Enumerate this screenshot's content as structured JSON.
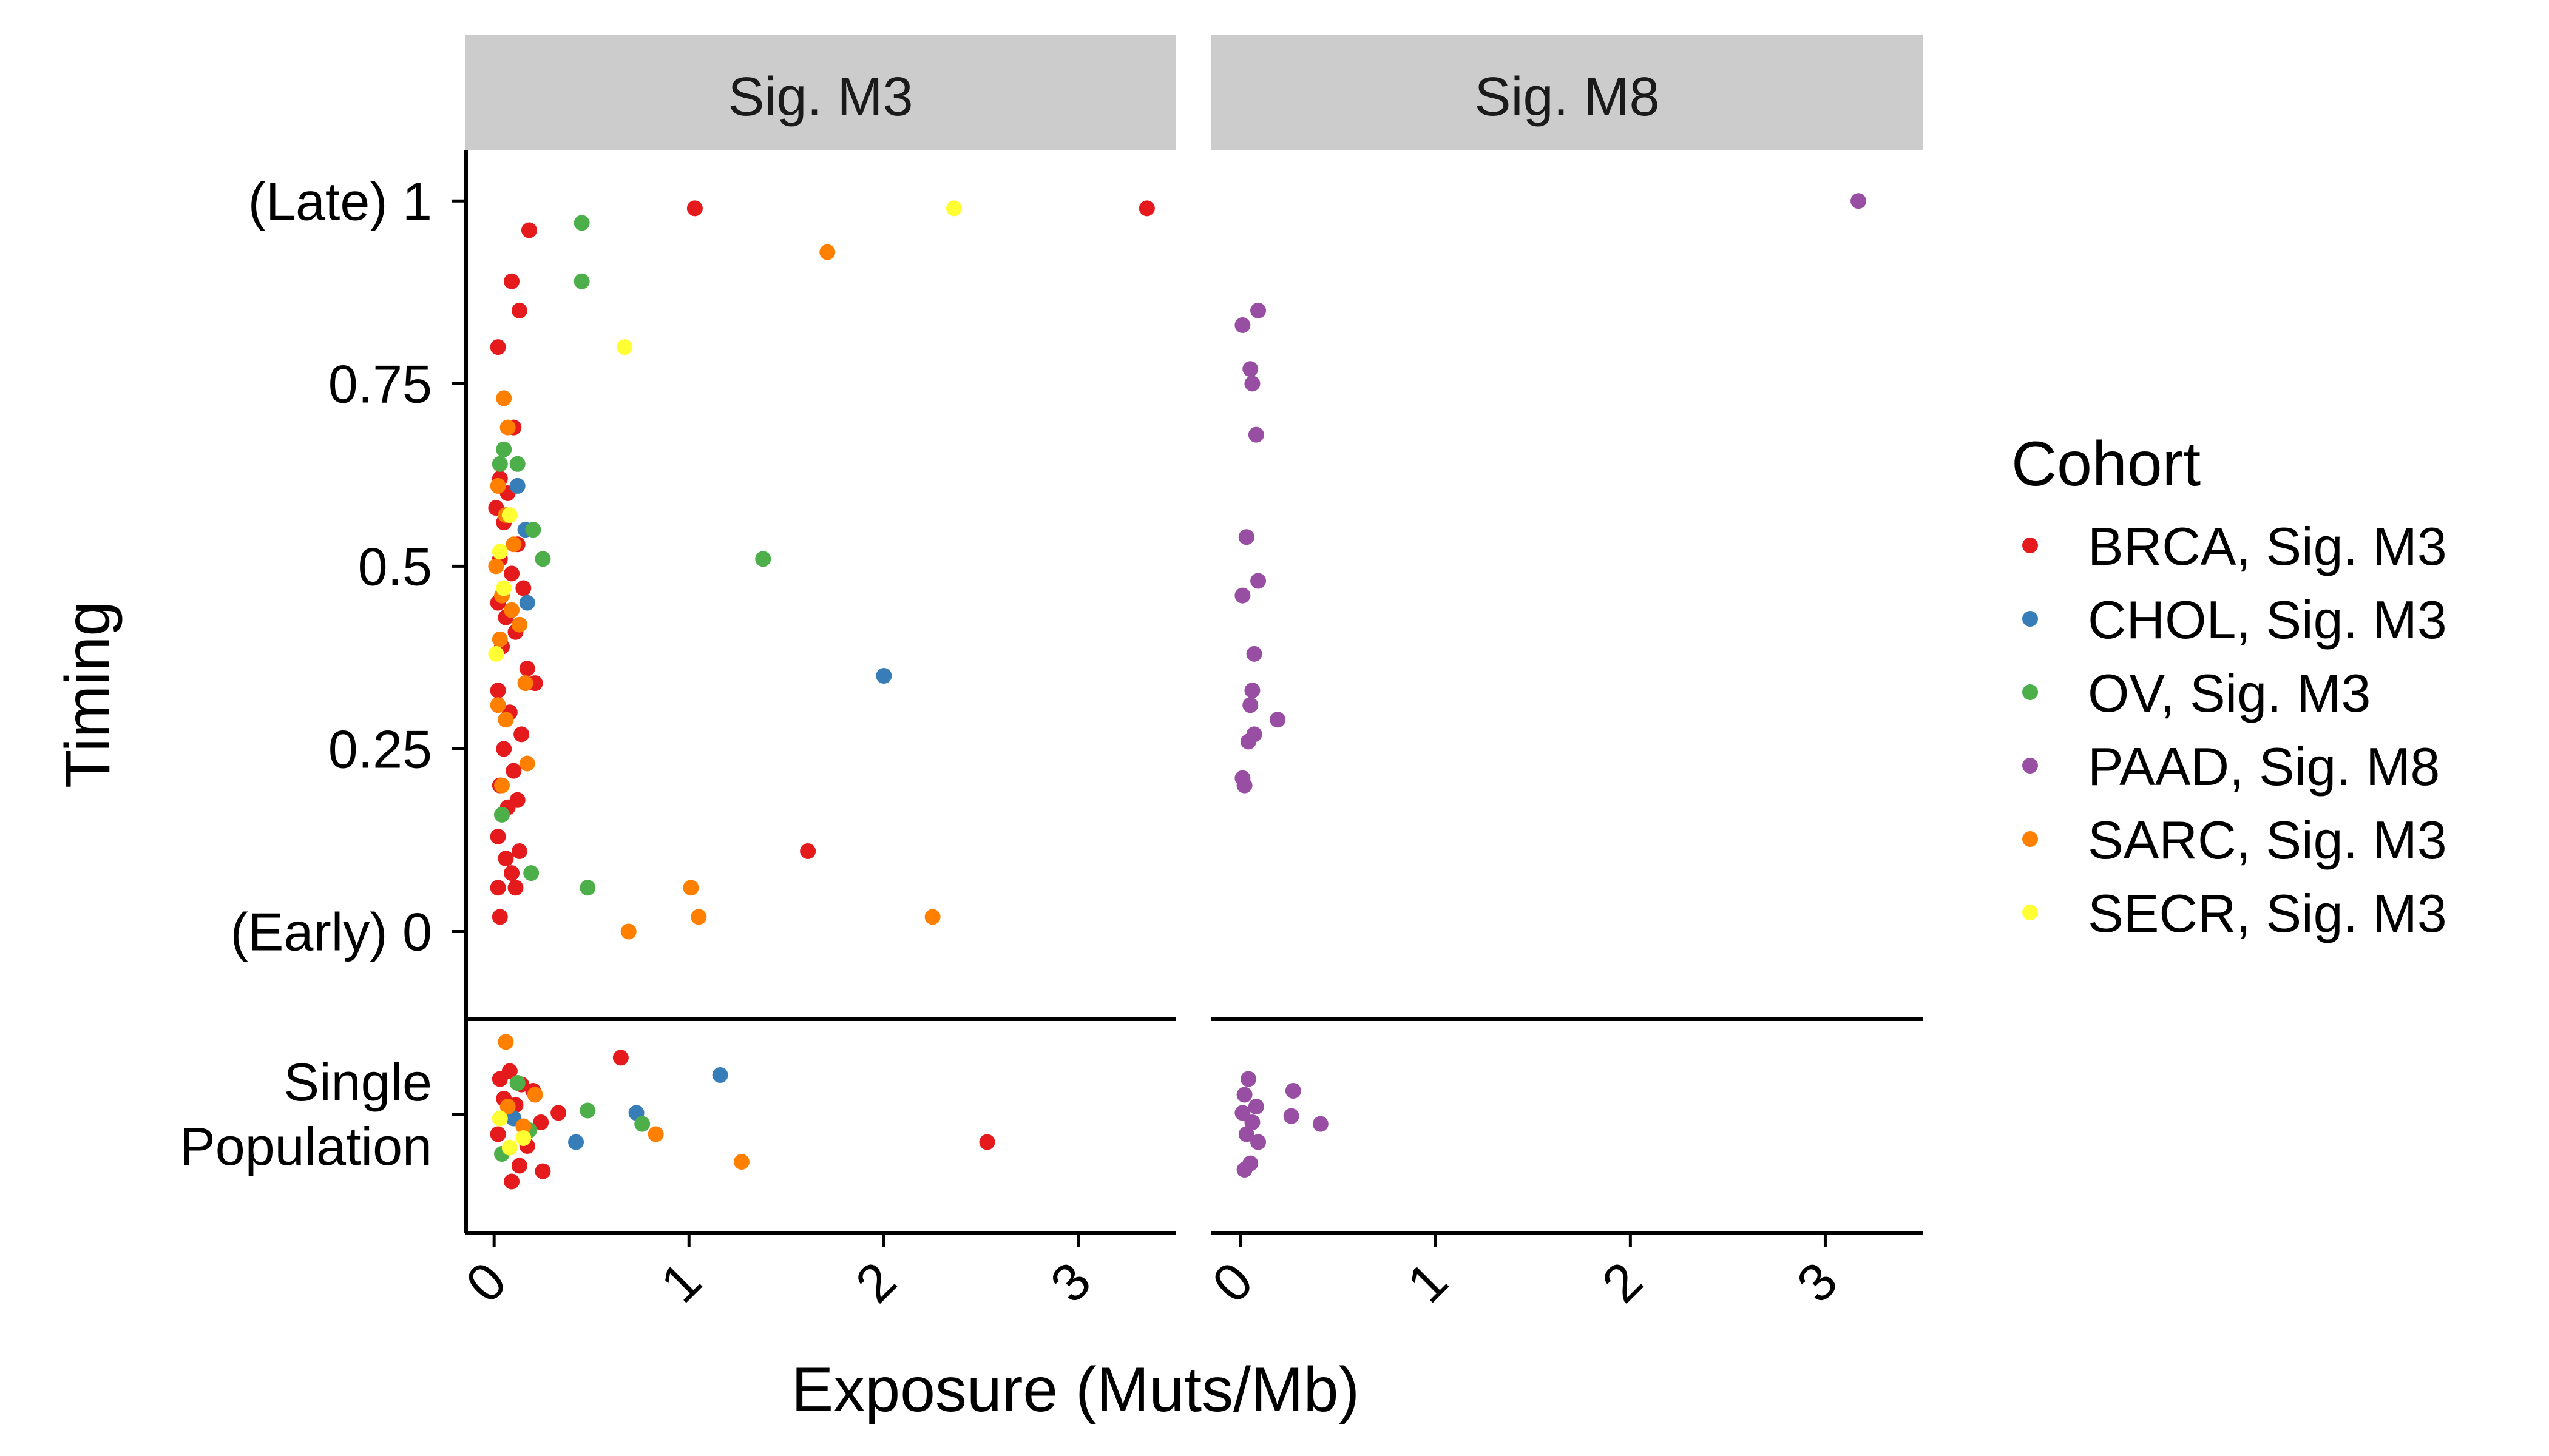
{
  "chart_data": {
    "type": "scatter",
    "xlabel": "Exposure (Muts/Mb)",
    "ylabel": "Timing",
    "xlim": [
      -0.15,
      3.5
    ],
    "ylim": [
      -0.12,
      1.07
    ],
    "x_ticks": [
      "0",
      "1",
      "2",
      "3"
    ],
    "y_ticks": [
      {
        "value": 1,
        "label": "(Late) 1"
      },
      {
        "value": 0.75,
        "label": "0.75"
      },
      {
        "value": 0.5,
        "label": "0.5"
      },
      {
        "value": 0.25,
        "label": "0.25"
      },
      {
        "value": 0,
        "label": "(Early) 0"
      }
    ],
    "bottom_row_label": [
      "Single",
      "Population"
    ],
    "grid": false,
    "legend": {
      "title": "Cohort",
      "placement": "right",
      "entries": [
        {
          "name": "BRCA, Sig. M3",
          "color": "#e41a1c"
        },
        {
          "name": "CHOL, Sig. M3",
          "color": "#377eb8"
        },
        {
          "name": "OV, Sig. M3",
          "color": "#4daf4a"
        },
        {
          "name": "PAAD, Sig. M8",
          "color": "#984ea3"
        },
        {
          "name": "SARC, Sig. M3",
          "color": "#ff7f00"
        },
        {
          "name": "SECR, Sig. M3",
          "color": "#ffff33"
        }
      ]
    },
    "panels": [
      {
        "title": "Sig. M3",
        "timing_points": [
          {
            "cohort": "BRCA, Sig. M3",
            "x": 1.03,
            "y": 0.99
          },
          {
            "cohort": "BRCA, Sig. M3",
            "x": 3.35,
            "y": 0.99
          },
          {
            "cohort": "BRCA, Sig. M3",
            "x": 0.18,
            "y": 0.96
          },
          {
            "cohort": "BRCA, Sig. M3",
            "x": 0.09,
            "y": 0.89
          },
          {
            "cohort": "BRCA, Sig. M3",
            "x": 0.13,
            "y": 0.85
          },
          {
            "cohort": "BRCA, Sig. M3",
            "x": 0.02,
            "y": 0.8
          },
          {
            "cohort": "BRCA, Sig. M3",
            "x": 0.1,
            "y": 0.69
          },
          {
            "cohort": "BRCA, Sig. M3",
            "x": 0.03,
            "y": 0.62
          },
          {
            "cohort": "BRCA, Sig. M3",
            "x": 0.07,
            "y": 0.6
          },
          {
            "cohort": "BRCA, Sig. M3",
            "x": 0.01,
            "y": 0.58
          },
          {
            "cohort": "BRCA, Sig. M3",
            "x": 0.05,
            "y": 0.56
          },
          {
            "cohort": "BRCA, Sig. M3",
            "x": 0.12,
            "y": 0.53
          },
          {
            "cohort": "BRCA, Sig. M3",
            "x": 0.03,
            "y": 0.51
          },
          {
            "cohort": "BRCA, Sig. M3",
            "x": 0.09,
            "y": 0.49
          },
          {
            "cohort": "BRCA, Sig. M3",
            "x": 0.15,
            "y": 0.47
          },
          {
            "cohort": "BRCA, Sig. M3",
            "x": 0.02,
            "y": 0.45
          },
          {
            "cohort": "BRCA, Sig. M3",
            "x": 0.06,
            "y": 0.43
          },
          {
            "cohort": "BRCA, Sig. M3",
            "x": 0.11,
            "y": 0.41
          },
          {
            "cohort": "BRCA, Sig. M3",
            "x": 0.04,
            "y": 0.39
          },
          {
            "cohort": "BRCA, Sig. M3",
            "x": 0.17,
            "y": 0.36
          },
          {
            "cohort": "BRCA, Sig. M3",
            "x": 0.21,
            "y": 0.34
          },
          {
            "cohort": "BRCA, Sig. M3",
            "x": 0.02,
            "y": 0.33
          },
          {
            "cohort": "BRCA, Sig. M3",
            "x": 0.08,
            "y": 0.3
          },
          {
            "cohort": "BRCA, Sig. M3",
            "x": 0.14,
            "y": 0.27
          },
          {
            "cohort": "BRCA, Sig. M3",
            "x": 0.05,
            "y": 0.25
          },
          {
            "cohort": "BRCA, Sig. M3",
            "x": 0.1,
            "y": 0.22
          },
          {
            "cohort": "BRCA, Sig. M3",
            "x": 0.03,
            "y": 0.2
          },
          {
            "cohort": "BRCA, Sig. M3",
            "x": 0.12,
            "y": 0.18
          },
          {
            "cohort": "BRCA, Sig. M3",
            "x": 0.07,
            "y": 0.17
          },
          {
            "cohort": "BRCA, Sig. M3",
            "x": 0.02,
            "y": 0.13
          },
          {
            "cohort": "BRCA, Sig. M3",
            "x": 0.13,
            "y": 0.11
          },
          {
            "cohort": "BRCA, Sig. M3",
            "x": 0.06,
            "y": 0.1
          },
          {
            "cohort": "BRCA, Sig. M3",
            "x": 0.09,
            "y": 0.08
          },
          {
            "cohort": "BRCA, Sig. M3",
            "x": 0.02,
            "y": 0.06
          },
          {
            "cohort": "BRCA, Sig. M3",
            "x": 0.11,
            "y": 0.06
          },
          {
            "cohort": "BRCA, Sig. M3",
            "x": 0.03,
            "y": 0.02
          },
          {
            "cohort": "BRCA, Sig. M3",
            "x": 1.61,
            "y": 0.11
          },
          {
            "cohort": "CHOL, Sig. M3",
            "x": 0.12,
            "y": 0.61
          },
          {
            "cohort": "CHOL, Sig. M3",
            "x": 0.16,
            "y": 0.55
          },
          {
            "cohort": "CHOL, Sig. M3",
            "x": 0.17,
            "y": 0.45
          },
          {
            "cohort": "CHOL, Sig. M3",
            "x": 2.0,
            "y": 0.35
          },
          {
            "cohort": "OV, Sig. M3",
            "x": 0.45,
            "y": 0.97
          },
          {
            "cohort": "OV, Sig. M3",
            "x": 0.45,
            "y": 0.89
          },
          {
            "cohort": "OV, Sig. M3",
            "x": 0.05,
            "y": 0.66
          },
          {
            "cohort": "OV, Sig. M3",
            "x": 0.12,
            "y": 0.64
          },
          {
            "cohort": "OV, Sig. M3",
            "x": 0.03,
            "y": 0.64
          },
          {
            "cohort": "OV, Sig. M3",
            "x": 0.2,
            "y": 0.55
          },
          {
            "cohort": "OV, Sig. M3",
            "x": 0.25,
            "y": 0.51
          },
          {
            "cohort": "OV, Sig. M3",
            "x": 1.38,
            "y": 0.51
          },
          {
            "cohort": "OV, Sig. M3",
            "x": 0.04,
            "y": 0.16
          },
          {
            "cohort": "OV, Sig. M3",
            "x": 0.19,
            "y": 0.08
          },
          {
            "cohort": "OV, Sig. M3",
            "x": 0.48,
            "y": 0.06
          },
          {
            "cohort": "SARC, Sig. M3",
            "x": 1.71,
            "y": 0.93
          },
          {
            "cohort": "SARC, Sig. M3",
            "x": 0.05,
            "y": 0.73
          },
          {
            "cohort": "SARC, Sig. M3",
            "x": 0.07,
            "y": 0.69
          },
          {
            "cohort": "SARC, Sig. M3",
            "x": 0.02,
            "y": 0.61
          },
          {
            "cohort": "SARC, Sig. M3",
            "x": 0.06,
            "y": 0.57
          },
          {
            "cohort": "SARC, Sig. M3",
            "x": 0.1,
            "y": 0.53
          },
          {
            "cohort": "SARC, Sig. M3",
            "x": 0.01,
            "y": 0.5
          },
          {
            "cohort": "SARC, Sig. M3",
            "x": 0.04,
            "y": 0.46
          },
          {
            "cohort": "SARC, Sig. M3",
            "x": 0.09,
            "y": 0.44
          },
          {
            "cohort": "SARC, Sig. M3",
            "x": 0.13,
            "y": 0.42
          },
          {
            "cohort": "SARC, Sig. M3",
            "x": 0.03,
            "y": 0.4
          },
          {
            "cohort": "SARC, Sig. M3",
            "x": 0.16,
            "y": 0.34
          },
          {
            "cohort": "SARC, Sig. M3",
            "x": 0.02,
            "y": 0.31
          },
          {
            "cohort": "SARC, Sig. M3",
            "x": 0.06,
            "y": 0.29
          },
          {
            "cohort": "SARC, Sig. M3",
            "x": 0.17,
            "y": 0.23
          },
          {
            "cohort": "SARC, Sig. M3",
            "x": 0.04,
            "y": 0.2
          },
          {
            "cohort": "SARC, Sig. M3",
            "x": 1.01,
            "y": 0.06
          },
          {
            "cohort": "SARC, Sig. M3",
            "x": 1.05,
            "y": 0.02
          },
          {
            "cohort": "SARC, Sig. M3",
            "x": 2.25,
            "y": 0.02
          },
          {
            "cohort": "SARC, Sig. M3",
            "x": 0.69,
            "y": 0.0
          },
          {
            "cohort": "SECR, Sig. M3",
            "x": 2.36,
            "y": 0.99
          },
          {
            "cohort": "SECR, Sig. M3",
            "x": 0.67,
            "y": 0.8
          },
          {
            "cohort": "SECR, Sig. M3",
            "x": 0.08,
            "y": 0.57
          },
          {
            "cohort": "SECR, Sig. M3",
            "x": 0.03,
            "y": 0.52
          },
          {
            "cohort": "SECR, Sig. M3",
            "x": 0.05,
            "y": 0.47
          },
          {
            "cohort": "SECR, Sig. M3",
            "x": 0.01,
            "y": 0.38
          }
        ],
        "single_population_points": [
          {
            "cohort": "BRCA, Sig. M3",
            "x": 0.65,
            "jitter": 0.72
          },
          {
            "cohort": "BRCA, Sig. M3",
            "x": 2.53,
            "jitter": -0.35
          },
          {
            "cohort": "BRCA, Sig. M3",
            "x": 0.33,
            "jitter": 0.02
          },
          {
            "cohort": "BRCA, Sig. M3",
            "x": 0.03,
            "jitter": 0.45
          },
          {
            "cohort": "BRCA, Sig. M3",
            "x": 0.08,
            "jitter": 0.55
          },
          {
            "cohort": "BRCA, Sig. M3",
            "x": 0.14,
            "jitter": 0.38
          },
          {
            "cohort": "BRCA, Sig. M3",
            "x": 0.2,
            "jitter": 0.3
          },
          {
            "cohort": "BRCA, Sig. M3",
            "x": 0.05,
            "jitter": 0.2
          },
          {
            "cohort": "BRCA, Sig. M3",
            "x": 0.11,
            "jitter": 0.12
          },
          {
            "cohort": "BRCA, Sig. M3",
            "x": 0.24,
            "jitter": -0.1
          },
          {
            "cohort": "BRCA, Sig. M3",
            "x": 0.02,
            "jitter": -0.25
          },
          {
            "cohort": "BRCA, Sig. M3",
            "x": 0.17,
            "jitter": -0.4
          },
          {
            "cohort": "BRCA, Sig. M3",
            "x": 0.25,
            "jitter": -0.72
          },
          {
            "cohort": "BRCA, Sig. M3",
            "x": 0.09,
            "jitter": -0.85
          },
          {
            "cohort": "BRCA, Sig. M3",
            "x": 0.13,
            "jitter": -0.65
          },
          {
            "cohort": "CHOL, Sig. M3",
            "x": 1.16,
            "jitter": 0.5
          },
          {
            "cohort": "CHOL, Sig. M3",
            "x": 0.73,
            "jitter": 0.02
          },
          {
            "cohort": "CHOL, Sig. M3",
            "x": 0.42,
            "jitter": -0.35
          },
          {
            "cohort": "CHOL, Sig. M3",
            "x": 0.1,
            "jitter": -0.05
          },
          {
            "cohort": "OV, Sig. M3",
            "x": 0.76,
            "jitter": -0.12
          },
          {
            "cohort": "OV, Sig. M3",
            "x": 0.48,
            "jitter": 0.05
          },
          {
            "cohort": "OV, Sig. M3",
            "x": 0.12,
            "jitter": 0.4
          },
          {
            "cohort": "OV, Sig. M3",
            "x": 0.18,
            "jitter": -0.2
          },
          {
            "cohort": "OV, Sig. M3",
            "x": 0.04,
            "jitter": -0.5
          },
          {
            "cohort": "SARC, Sig. M3",
            "x": 1.27,
            "jitter": -0.6
          },
          {
            "cohort": "SARC, Sig. M3",
            "x": 0.83,
            "jitter": -0.25
          },
          {
            "cohort": "SARC, Sig. M3",
            "x": 0.06,
            "jitter": 0.92
          },
          {
            "cohort": "SARC, Sig. M3",
            "x": 0.07,
            "jitter": 0.1
          },
          {
            "cohort": "SARC, Sig. M3",
            "x": 0.15,
            "jitter": -0.15
          },
          {
            "cohort": "SARC, Sig. M3",
            "x": 0.21,
            "jitter": 0.25
          },
          {
            "cohort": "SECR, Sig. M3",
            "x": 0.15,
            "jitter": -0.3
          },
          {
            "cohort": "SECR, Sig. M3",
            "x": 0.03,
            "jitter": -0.05
          },
          {
            "cohort": "SECR, Sig. M3",
            "x": 0.08,
            "jitter": -0.42
          }
        ]
      },
      {
        "title": "Sig. M8",
        "timing_points": [
          {
            "cohort": "PAAD, Sig. M8",
            "x": 3.17,
            "y": 1.0
          },
          {
            "cohort": "PAAD, Sig. M8",
            "x": 0.09,
            "y": 0.85
          },
          {
            "cohort": "PAAD, Sig. M8",
            "x": 0.01,
            "y": 0.83
          },
          {
            "cohort": "PAAD, Sig. M8",
            "x": 0.05,
            "y": 0.77
          },
          {
            "cohort": "PAAD, Sig. M8",
            "x": 0.06,
            "y": 0.75
          },
          {
            "cohort": "PAAD, Sig. M8",
            "x": 0.08,
            "y": 0.68
          },
          {
            "cohort": "PAAD, Sig. M8",
            "x": 0.03,
            "y": 0.54
          },
          {
            "cohort": "PAAD, Sig. M8",
            "x": 0.09,
            "y": 0.48
          },
          {
            "cohort": "PAAD, Sig. M8",
            "x": 0.01,
            "y": 0.46
          },
          {
            "cohort": "PAAD, Sig. M8",
            "x": 0.07,
            "y": 0.38
          },
          {
            "cohort": "PAAD, Sig. M8",
            "x": 0.06,
            "y": 0.33
          },
          {
            "cohort": "PAAD, Sig. M8",
            "x": 0.05,
            "y": 0.31
          },
          {
            "cohort": "PAAD, Sig. M8",
            "x": 0.19,
            "y": 0.29
          },
          {
            "cohort": "PAAD, Sig. M8",
            "x": 0.07,
            "y": 0.27
          },
          {
            "cohort": "PAAD, Sig. M8",
            "x": 0.04,
            "y": 0.26
          },
          {
            "cohort": "PAAD, Sig. M8",
            "x": 0.01,
            "y": 0.21
          },
          {
            "cohort": "PAAD, Sig. M8",
            "x": 0.02,
            "y": 0.2
          }
        ],
        "single_population_points": [
          {
            "cohort": "PAAD, Sig. M8",
            "x": 0.27,
            "jitter": 0.3
          },
          {
            "cohort": "PAAD, Sig. M8",
            "x": 0.41,
            "jitter": -0.12
          },
          {
            "cohort": "PAAD, Sig. M8",
            "x": 0.26,
            "jitter": -0.02
          },
          {
            "cohort": "PAAD, Sig. M8",
            "x": 0.04,
            "jitter": 0.45
          },
          {
            "cohort": "PAAD, Sig. M8",
            "x": 0.02,
            "jitter": 0.25
          },
          {
            "cohort": "PAAD, Sig. M8",
            "x": 0.08,
            "jitter": 0.1
          },
          {
            "cohort": "PAAD, Sig. M8",
            "x": 0.01,
            "jitter": 0.02
          },
          {
            "cohort": "PAAD, Sig. M8",
            "x": 0.06,
            "jitter": -0.1
          },
          {
            "cohort": "PAAD, Sig. M8",
            "x": 0.03,
            "jitter": -0.25
          },
          {
            "cohort": "PAAD, Sig. M8",
            "x": 0.09,
            "jitter": -0.35
          },
          {
            "cohort": "PAAD, Sig. M8",
            "x": 0.05,
            "jitter": -0.62
          },
          {
            "cohort": "PAAD, Sig. M8",
            "x": 0.02,
            "jitter": -0.7
          }
        ]
      }
    ]
  }
}
